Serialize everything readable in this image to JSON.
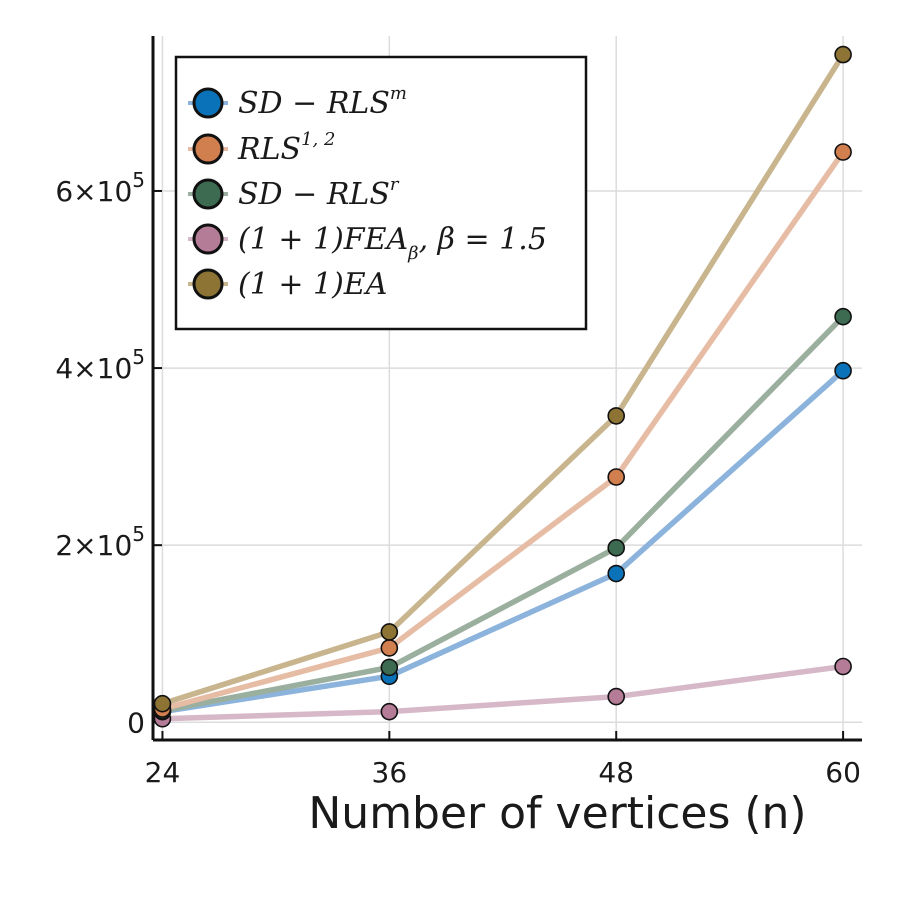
{
  "chart_data": {
    "type": "line",
    "title": "",
    "xlabel": "Number of vertices (n)",
    "ylabel": "",
    "x": [
      24,
      36,
      48,
      60
    ],
    "xlim": [
      23.5,
      61
    ],
    "ylim": [
      -20000,
      775000
    ],
    "xticks": [
      24,
      36,
      48,
      60
    ],
    "xtick_labels": [
      "24",
      "36",
      "48",
      "60"
    ],
    "yticks": [
      0,
      200000,
      400000,
      600000
    ],
    "ytick_labels": [
      {
        "mantissa": "0",
        "exp": ""
      },
      {
        "mantissa": "2×10",
        "exp": "5"
      },
      {
        "mantissa": "4×10",
        "exp": "5"
      },
      {
        "mantissa": "6×10",
        "exp": "5"
      }
    ],
    "grid": true,
    "legend_position": "top-left",
    "series": [
      {
        "name": "SD-RLS^m",
        "label": {
          "base": "SD − RLS",
          "sup": "m",
          "sub": "",
          "rest": ""
        },
        "marker_color": "#0a72b8",
        "line_color": "#8bb3dc",
        "values": [
          12000,
          52000,
          168000,
          397000
        ]
      },
      {
        "name": "RLS^{1,2}",
        "label": {
          "base": "RLS",
          "sup": "1, 2",
          "sub": "",
          "rest": ""
        },
        "marker_color": "#d27f4f",
        "line_color": "#e6bca4",
        "values": [
          15000,
          84000,
          277000,
          644000
        ]
      },
      {
        "name": "SD-RLS^r",
        "label": {
          "base": "SD − RLS",
          "sup": "r",
          "sub": "",
          "rest": ""
        },
        "marker_color": "#3d6b52",
        "line_color": "#9baf9f",
        "values": [
          13000,
          62000,
          197000,
          458000
        ]
      },
      {
        "name": "(1+1)FEA_β, β=1.5",
        "label": {
          "base": "(1 + 1)FEA",
          "sup": "",
          "sub": "β",
          "rest": ", β = 1.5"
        },
        "marker_color": "#b57c98",
        "line_color": "#d6b8c8",
        "values": [
          4000,
          12000,
          29000,
          63000
        ]
      },
      {
        "name": "(1+1)EA",
        "label": {
          "base": "(1 + 1)EA",
          "sup": "",
          "sub": "",
          "rest": ""
        },
        "marker_color": "#8d7434",
        "line_color": "#c8b58e",
        "values": [
          21000,
          102000,
          346000,
          754000
        ]
      }
    ]
  }
}
